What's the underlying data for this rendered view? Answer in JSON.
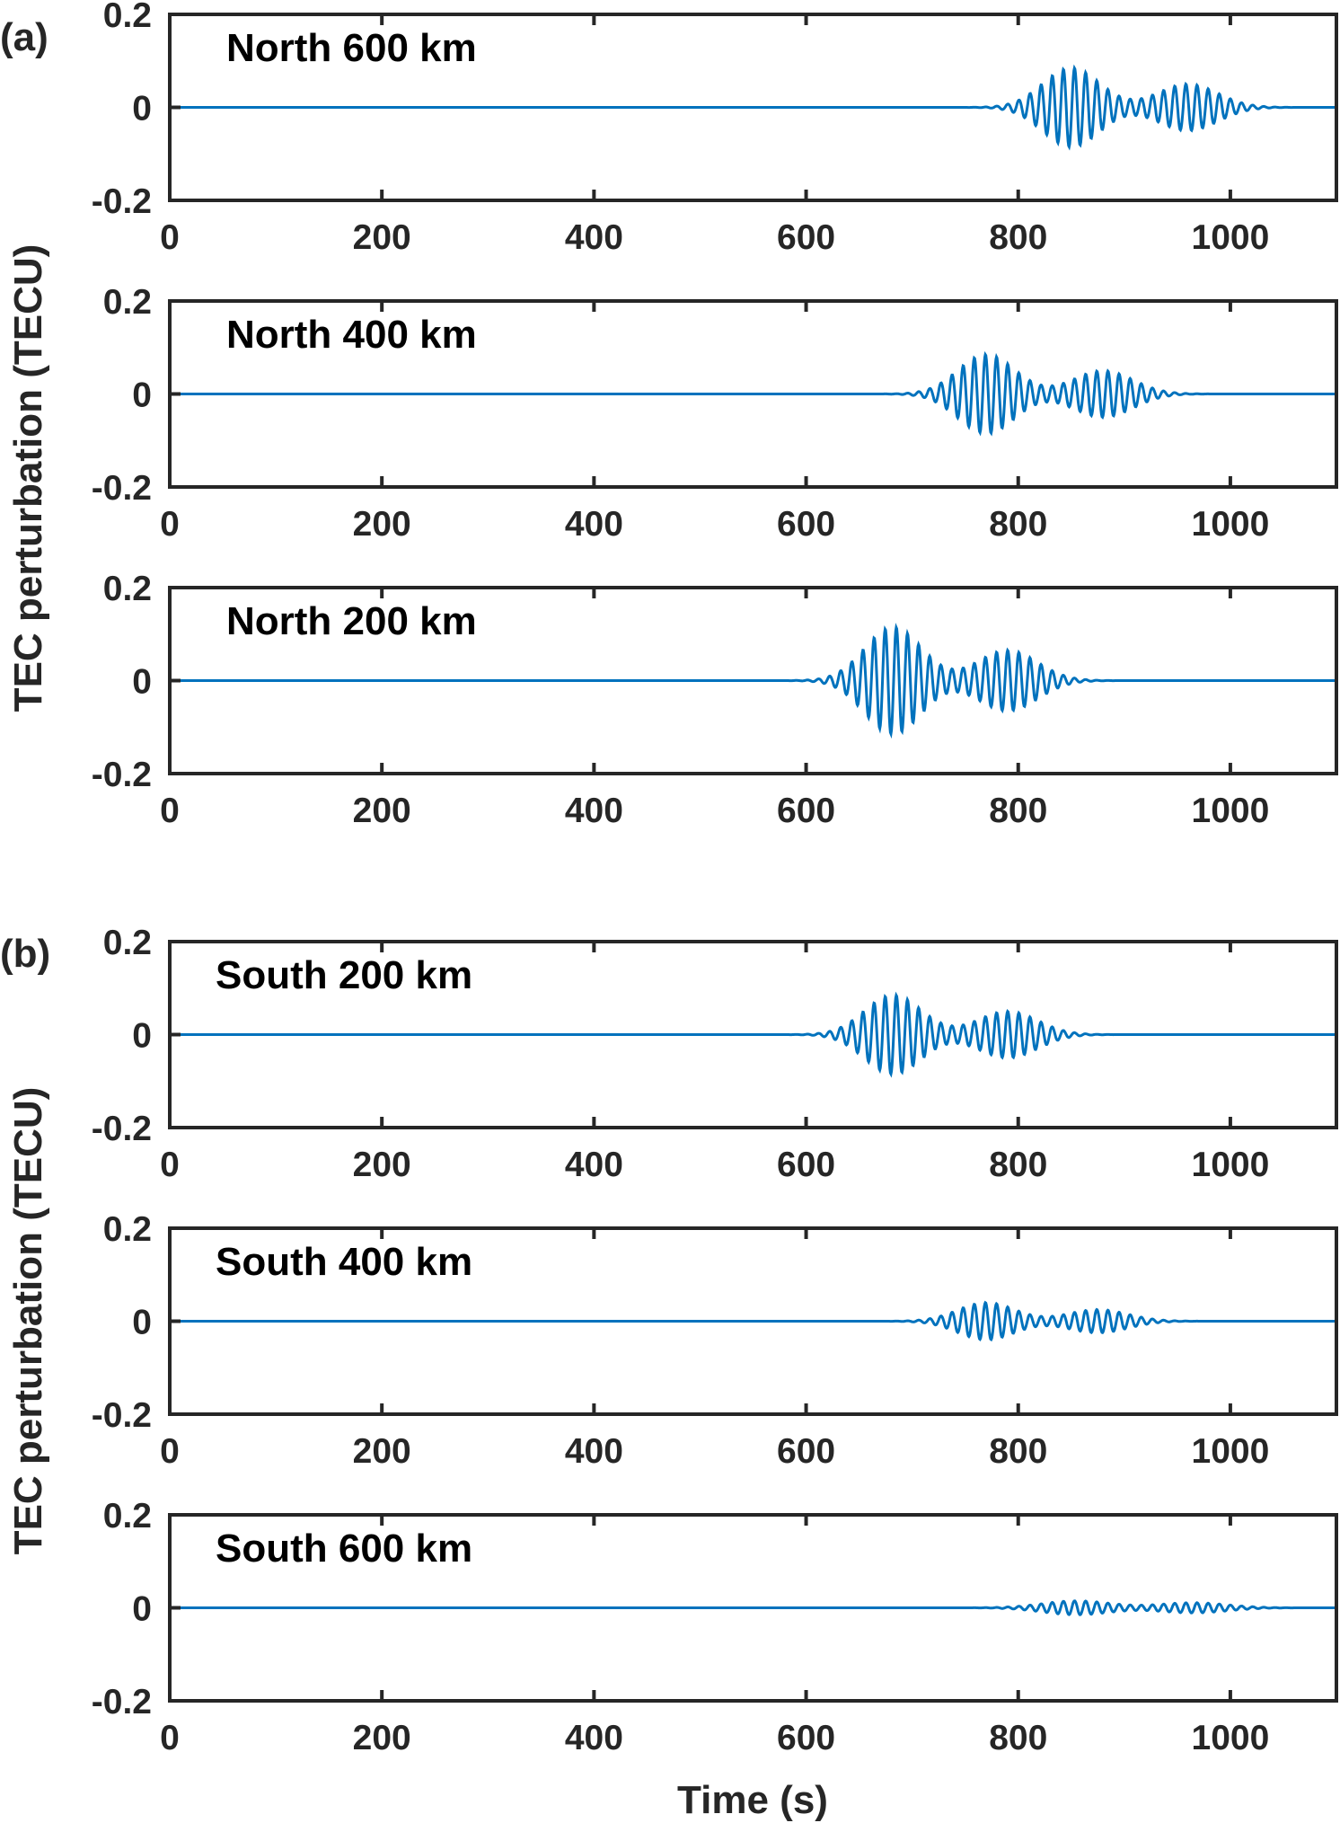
{
  "chart_data": [
    {
      "group": "(a)",
      "ylabel": "TEC perturbation (TECU)",
      "panels": [
        {
          "title": "North 600 km",
          "packets": [
            {
              "center": 850,
              "amp": 0.085,
              "width": 38
            },
            {
              "center": 960,
              "amp": 0.05,
              "width": 40
            }
          ]
        },
        {
          "title": "North 400 km",
          "packets": [
            {
              "center": 770,
              "amp": 0.085,
              "width": 38
            },
            {
              "center": 880,
              "amp": 0.05,
              "width": 40
            }
          ]
        },
        {
          "title": "North 200 km",
          "packets": [
            {
              "center": 682,
              "amp": 0.115,
              "width": 38
            },
            {
              "center": 790,
              "amp": 0.065,
              "width": 40
            }
          ]
        }
      ]
    },
    {
      "group": "(b)",
      "ylabel": "TEC perturbation (TECU)",
      "panels": [
        {
          "title": "South 200 km",
          "packets": [
            {
              "center": 682,
              "amp": 0.085,
              "width": 38
            },
            {
              "center": 790,
              "amp": 0.05,
              "width": 40
            }
          ]
        },
        {
          "title": "South 400 km",
          "packets": [
            {
              "center": 770,
              "amp": 0.04,
              "width": 38
            },
            {
              "center": 875,
              "amp": 0.025,
              "width": 40
            }
          ]
        },
        {
          "title": "South 600 km",
          "packets": [
            {
              "center": 855,
              "amp": 0.015,
              "width": 45
            },
            {
              "center": 965,
              "amp": 0.011,
              "width": 45
            }
          ]
        }
      ]
    }
  ],
  "common": {
    "type": "line",
    "xlabel": "Time (s)",
    "xlim": [
      0,
      1100
    ],
    "ylim": [
      -0.2,
      0.2
    ],
    "xticks": [
      "0",
      "200",
      "400",
      "600",
      "800",
      "1000"
    ],
    "yticks": [
      "0.2",
      "0",
      "-0.2"
    ],
    "period_s": 10.5,
    "line_color": "#0072BD"
  }
}
